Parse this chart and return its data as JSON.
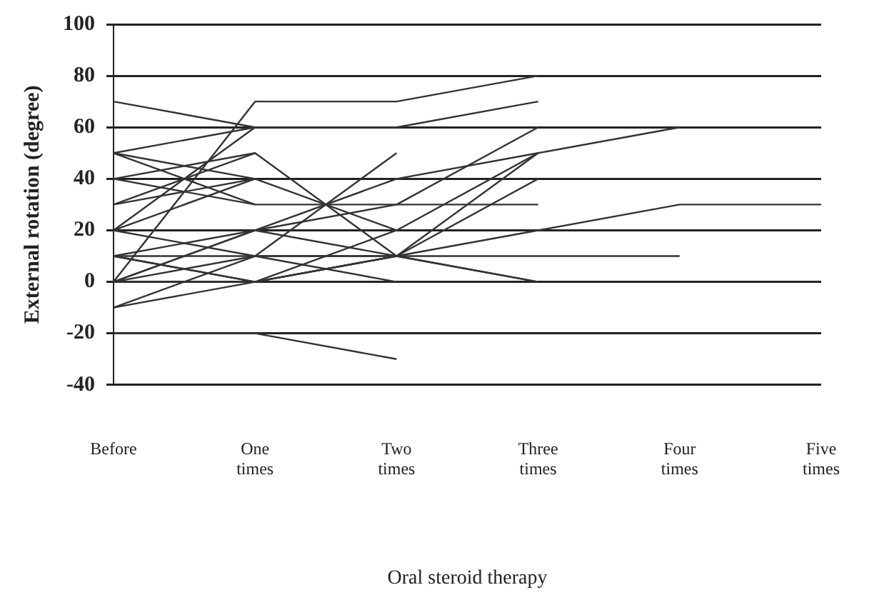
{
  "chart_data": {
    "type": "line",
    "xlabel": "Oral steroid therapy",
    "ylabel": "External rotation (degree)",
    "categories": [
      "Before",
      "One times",
      "Two times",
      "Three times",
      "Four times",
      "Five times"
    ],
    "ylim": [
      -40,
      100
    ],
    "yticks": [
      -40,
      -20,
      0,
      20,
      40,
      60,
      80,
      100
    ],
    "grid": "y",
    "legend": false,
    "marker": "none",
    "series": [
      {
        "color": "#333333",
        "values": [
          70,
          60,
          null,
          null,
          null,
          null
        ]
      },
      {
        "color": "#333333",
        "values": [
          50,
          30,
          null,
          null,
          null,
          null
        ]
      },
      {
        "color": "#333333",
        "values": [
          50,
          40,
          20,
          null,
          null,
          null
        ]
      },
      {
        "color": "#333333",
        "values": [
          10,
          10,
          10,
          0,
          null,
          null
        ]
      },
      {
        "color": "#333333",
        "values": [
          -20,
          -20,
          -30,
          null,
          null,
          null
        ]
      },
      {
        "color": "#333333",
        "values": [
          0,
          70,
          70,
          80,
          null,
          null
        ]
      },
      {
        "color": "#333333",
        "values": [
          20,
          60,
          60,
          70,
          null,
          null
        ]
      },
      {
        "color": "#333333",
        "values": [
          30,
          50,
          10,
          null,
          null,
          null
        ]
      },
      {
        "color": "#333333",
        "values": [
          10,
          20,
          40,
          50,
          60,
          null
        ]
      },
      {
        "color": "#333333",
        "values": [
          0,
          0,
          10,
          20,
          30,
          30
        ]
      },
      {
        "color": "#333333",
        "values": [
          10,
          0,
          10,
          10,
          10,
          null
        ]
      },
      {
        "color": "#333333",
        "values": [
          40,
          30,
          30,
          30,
          null,
          null
        ]
      },
      {
        "color": "#333333",
        "values": [
          -10,
          10,
          10,
          0,
          null,
          null
        ]
      },
      {
        "color": "#333333",
        "values": [
          20,
          10,
          50,
          null,
          null,
          null
        ]
      },
      {
        "color": "#333333",
        "values": [
          0,
          20,
          30,
          60,
          null,
          null
        ]
      },
      {
        "color": "#333333",
        "values": [
          30,
          40,
          null,
          null,
          null,
          null
        ]
      },
      {
        "color": "#333333",
        "values": [
          50,
          60,
          null,
          null,
          null,
          null
        ]
      },
      {
        "color": "#333333",
        "values": [
          20,
          40,
          null,
          null,
          null,
          null
        ]
      },
      {
        "color": "#333333",
        "values": [
          0,
          20,
          10,
          50,
          null,
          null
        ]
      },
      {
        "color": "#333333",
        "values": [
          -10,
          0,
          20,
          50,
          null,
          null
        ]
      },
      {
        "color": "#333333",
        "values": [
          40,
          50,
          null,
          null,
          null,
          null
        ]
      },
      {
        "color": "#333333",
        "values": [
          0,
          10,
          0,
          null,
          null,
          null
        ]
      },
      {
        "color": "#333333",
        "values": [
          10,
          0,
          10,
          40,
          null,
          null
        ]
      }
    ]
  }
}
